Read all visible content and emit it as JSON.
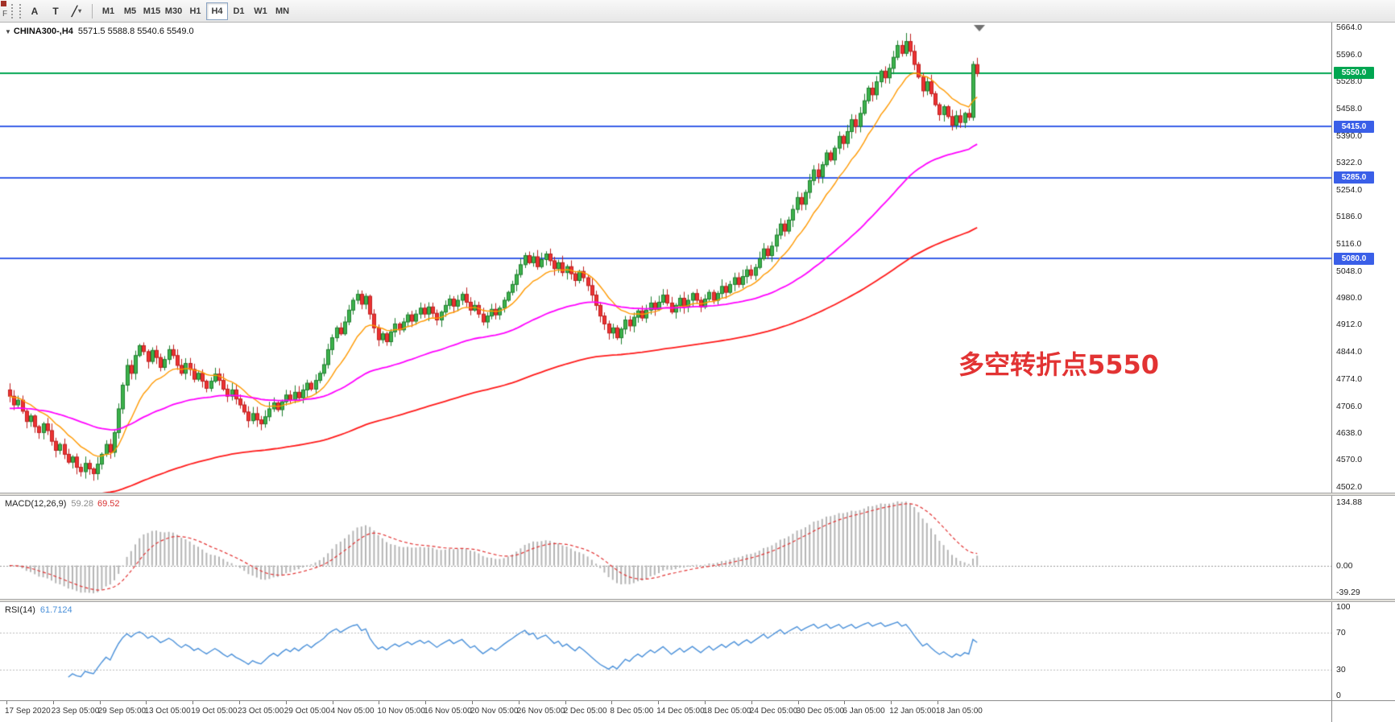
{
  "toolbar": {
    "edge_label": "F",
    "icon_buttons": [
      {
        "name": "annotate-text-button",
        "glyph": "A"
      },
      {
        "name": "text-label-button",
        "glyph": "T"
      },
      {
        "name": "draw-tools-button",
        "glyph": "╱",
        "dropdown": "▾"
      }
    ],
    "timeframes": [
      {
        "label": "M1"
      },
      {
        "label": "M5"
      },
      {
        "label": "M15"
      },
      {
        "label": "M30"
      },
      {
        "label": "H1"
      },
      {
        "label": "H4",
        "active": true
      },
      {
        "label": "D1"
      },
      {
        "label": "W1"
      },
      {
        "label": "MN"
      }
    ]
  },
  "chart": {
    "title": "CHINA300-,H4",
    "ohlc": "5571.5 5588.8 5540.6 5549.0",
    "annotation": {
      "text": "多空转折点5550",
      "color": "#e23333"
    },
    "price_axis_labels": [
      "5664.0",
      "5596.0",
      "5528.0",
      "5458.0",
      "5390.0",
      "5322.0",
      "5254.0",
      "5186.0",
      "5116.0",
      "5048.0",
      "4980.0",
      "4912.0",
      "4844.0",
      "4774.0",
      "4706.0",
      "4638.0",
      "4570.0",
      "4502.0"
    ],
    "levels": [
      {
        "value": 5550,
        "label": "5550.0",
        "color": "#00a651"
      },
      {
        "value": 5415,
        "label": "5415.0",
        "color": "#3a5fe8"
      },
      {
        "value": 5285,
        "label": "5285.0",
        "color": "#3a5fe8"
      },
      {
        "value": 5080,
        "label": "5080.0",
        "color": "#3a5fe8"
      }
    ],
    "time_axis_labels": [
      "17 Sep 2020",
      "23 Sep 05:00",
      "29 Sep 05:00",
      "13 Oct 05:00",
      "19 Oct 05:00",
      "23 Oct 05:00",
      "29 Oct 05:00",
      "4 Nov 05:00",
      "10 Nov 05:00",
      "16 Nov 05:00",
      "20 Nov 05:00",
      "26 Nov 05:00",
      "2 Dec 05:00",
      "8 Dec 05:00",
      "14 Dec 05:00",
      "18 Dec 05:00",
      "24 Dec 05:00",
      "30 Dec 05:00",
      "6 Jan 05:00",
      "12 Jan 05:00",
      "18 Jan 05:00"
    ],
    "colors": {
      "candle_up_fill": "#3db24c",
      "candle_up_border": "#1f7f2f",
      "candle_down_fill": "#ec3333",
      "candle_down_border": "#bf1f1f",
      "ma_fast": "#ff9900",
      "ma_medium": "#ff00ff",
      "ma_slow": "#ff1a1a",
      "macd_histogram": "#b4b4b4",
      "macd_signal": "#e23333",
      "rsi_line": "#4a90d9",
      "shift_marker": "#707070"
    }
  },
  "macd_panel": {
    "label": "MACD(12,26,9)",
    "value_main": "59.28",
    "value_signal": "69.52"
  },
  "rsi_panel": {
    "label": "RSI(14)",
    "value": "61.7124"
  },
  "chart_data": {
    "type": "candlestick",
    "symbol": "CHINA300-",
    "timeframe": "H4",
    "title": "CHINA300-,H4 5571.5 5588.8 5540.6 5549.0",
    "y_range": [
      4488,
      5678
    ],
    "current_bar": {
      "open": 5571.5,
      "high": 5588.8,
      "low": 5540.6,
      "close": 5549.0
    },
    "horizontal_levels": [
      5550,
      5415,
      5285,
      5080
    ],
    "closes": [
      4732,
      4710,
      4722,
      4694,
      4668,
      4682,
      4655,
      4640,
      4662,
      4645,
      4618,
      4595,
      4610,
      4585,
      4565,
      4578,
      4552,
      4541,
      4562,
      4548,
      4536,
      4560,
      4585,
      4610,
      4590,
      4640,
      4700,
      4760,
      4810,
      4790,
      4835,
      4860,
      4845,
      4820,
      4848,
      4830,
      4805,
      4825,
      4850,
      4835,
      4810,
      4790,
      4815,
      4800,
      4775,
      4790,
      4770,
      4752,
      4770,
      4788,
      4772,
      4750,
      4732,
      4748,
      4725,
      4710,
      4692,
      4670,
      4688,
      4672,
      4662,
      4680,
      4700,
      4715,
      4698,
      4718,
      4735,
      4722,
      4742,
      4728,
      4748,
      4765,
      4750,
      4772,
      4790,
      4812,
      4850,
      4880,
      4905,
      4890,
      4920,
      4950,
      4975,
      4990,
      4965,
      4985,
      4940,
      4905,
      4875,
      4890,
      4870,
      4895,
      4915,
      4900,
      4920,
      4938,
      4922,
      4940,
      4955,
      4940,
      4958,
      4942,
      4925,
      4945,
      4962,
      4978,
      4960,
      4975,
      4990,
      4970,
      4950,
      4962,
      4940,
      4920,
      4935,
      4952,
      4938,
      4955,
      4975,
      4995,
      5015,
      5040,
      5065,
      5088,
      5070,
      5085,
      5060,
      5078,
      5092,
      5075,
      5055,
      5070,
      5045,
      5060,
      5042,
      5025,
      5048,
      5032,
      5012,
      4988,
      4962,
      4935,
      4915,
      4892,
      4905,
      4880,
      4902,
      4925,
      4910,
      4932,
      4948,
      4930,
      4950,
      4968,
      4952,
      4970,
      4988,
      4968,
      4945,
      4962,
      4980,
      4958,
      4975,
      4992,
      4975,
      4958,
      4978,
      4995,
      4975,
      4992,
      5010,
      4995,
      5015,
      5032,
      5015,
      5035,
      5052,
      5038,
      5058,
      5080,
      5105,
      5088,
      5112,
      5140,
      5168,
      5150,
      5178,
      5205,
      5235,
      5218,
      5248,
      5278,
      5305,
      5288,
      5318,
      5348,
      5330,
      5360,
      5390,
      5372,
      5402,
      5432,
      5415,
      5448,
      5480,
      5512,
      5495,
      5528,
      5555,
      5538,
      5562,
      5590,
      5620,
      5600,
      5630,
      5605,
      5572,
      5540,
      5505,
      5528,
      5498,
      5470,
      5445,
      5465,
      5440,
      5418,
      5442,
      5425,
      5448,
      5438,
      5572,
      5549
    ],
    "moving_averages": [
      {
        "name": "fast",
        "period": 13,
        "seed": 4732,
        "color": "#ff9900"
      },
      {
        "name": "medium",
        "period": 60,
        "seed": 4700,
        "color": "#ff00ff"
      },
      {
        "name": "slow",
        "period": 150,
        "seed": 4440,
        "color": "#ff1a1a"
      }
    ],
    "indicators": [
      {
        "name": "MACD",
        "params": "12,26,9",
        "values": [
          59.28,
          69.52
        ],
        "axis_labels": [
          "134.88",
          "0.00",
          "-39.29"
        ]
      },
      {
        "name": "RSI",
        "params": "14",
        "value": 61.7124,
        "axis_labels": [
          "100",
          "70",
          "30",
          "0"
        ],
        "levels": [
          70,
          30
        ]
      }
    ]
  }
}
